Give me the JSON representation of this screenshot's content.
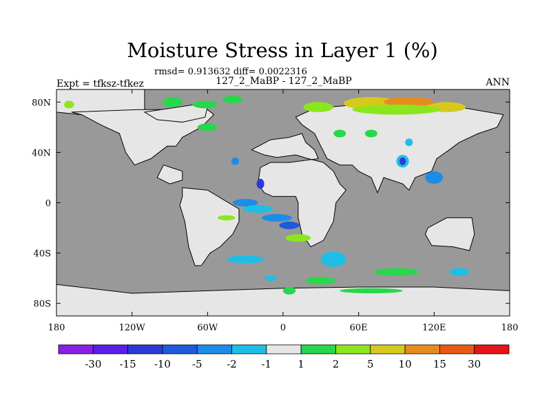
{
  "chart_data": {
    "type": "heatmap",
    "title": "Moisture Stress in Layer 1 (%)",
    "stats_line": "rmsd= 0.913632  diff= 0.0022316",
    "subtitle": "127_2_MaBP - 127_2_MaBP",
    "left_label": "Expt = tfksz-tfkez",
    "right_label": "ANN",
    "x_ticks": [
      "180",
      "120W",
      "60W",
      "0",
      "60E",
      "120E",
      "180"
    ],
    "y_ticks": [
      "80N",
      "40N",
      "0",
      "40S",
      "80S"
    ],
    "xlim": [
      -180,
      180
    ],
    "ylim": [
      -90,
      90
    ],
    "colorbar": {
      "levels": [
        "-30",
        "-15",
        "-10",
        "-5",
        "-2",
        "-1",
        "1",
        "2",
        "5",
        "10",
        "15",
        "30"
      ],
      "colors": [
        "#8a1ee6",
        "#5a1ee6",
        "#2a3ad8",
        "#1e5adc",
        "#1e8ce6",
        "#1ebee6",
        "#e6e6e6",
        "#28d74b",
        "#8ce61e",
        "#d7c81e",
        "#e68c1e",
        "#e65a14",
        "#e61414"
      ]
    },
    "ocean_color": "#999999",
    "land_color": "#e6e6e6",
    "land": [
      [
        [
          -180,
          90
        ],
        [
          -110,
          90
        ],
        [
          -110,
          70
        ],
        [
          -130,
          62
        ],
        [
          -160,
          70
        ],
        [
          -180,
          72
        ]
      ],
      [
        [
          -115,
          74
        ],
        [
          -60,
          74
        ],
        [
          -55,
          70
        ],
        [
          -65,
          60
        ],
        [
          -80,
          52
        ],
        [
          -85,
          45
        ],
        [
          -92,
          45
        ],
        [
          -105,
          35
        ],
        [
          -118,
          30
        ],
        [
          -125,
          40
        ],
        [
          -130,
          55
        ],
        [
          -145,
          62
        ],
        [
          -160,
          70
        ],
        [
          -168,
          72
        ]
      ],
      [
        [
          -110,
          72
        ],
        [
          -70,
          78
        ],
        [
          -60,
          76
        ],
        [
          -62,
          68
        ],
        [
          -80,
          64
        ],
        [
          -100,
          66
        ]
      ],
      [
        [
          -95,
          30
        ],
        [
          -80,
          25
        ],
        [
          -80,
          18
        ],
        [
          -90,
          15
        ],
        [
          -100,
          20
        ]
      ],
      [
        [
          -80,
          12
        ],
        [
          -60,
          10
        ],
        [
          -35,
          -5
        ],
        [
          -35,
          -15
        ],
        [
          -40,
          -25
        ],
        [
          -50,
          -35
        ],
        [
          -58,
          -40
        ],
        [
          -65,
          -50
        ],
        [
          -70,
          -50
        ],
        [
          -75,
          -35
        ],
        [
          -78,
          -15
        ],
        [
          -82,
          -2
        ],
        [
          -80,
          5
        ]
      ],
      [
        [
          -25,
          42
        ],
        [
          -10,
          50
        ],
        [
          5,
          52
        ],
        [
          15,
          55
        ],
        [
          18,
          48
        ],
        [
          25,
          42
        ],
        [
          28,
          35
        ],
        [
          5,
          32
        ],
        [
          -10,
          32
        ],
        [
          -18,
          28
        ],
        [
          -20,
          15
        ],
        [
          -15,
          8
        ],
        [
          -8,
          5
        ],
        [
          10,
          5
        ],
        [
          12,
          0
        ],
        [
          12,
          -12
        ],
        [
          15,
          -25
        ],
        [
          22,
          -35
        ],
        [
          32,
          -30
        ],
        [
          40,
          -15
        ],
        [
          42,
          0
        ],
        [
          50,
          10
        ],
        [
          45,
          15
        ],
        [
          40,
          25
        ],
        [
          32,
          32
        ],
        [
          20,
          35
        ],
        [
          10,
          38
        ],
        [
          -5,
          36
        ],
        [
          -15,
          38
        ]
      ],
      [
        [
          25,
          75
        ],
        [
          60,
          78
        ],
        [
          100,
          80
        ],
        [
          140,
          76
        ],
        [
          175,
          70
        ],
        [
          170,
          60
        ],
        [
          155,
          55
        ],
        [
          140,
          48
        ],
        [
          132,
          42
        ],
        [
          122,
          35
        ],
        [
          118,
          25
        ],
        [
          105,
          20
        ],
        [
          100,
          10
        ],
        [
          95,
          15
        ],
        [
          80,
          20
        ],
        [
          75,
          8
        ],
        [
          70,
          20
        ],
        [
          60,
          25
        ],
        [
          55,
          30
        ],
        [
          45,
          30
        ],
        [
          35,
          35
        ],
        [
          30,
          45
        ],
        [
          25,
          55
        ],
        [
          15,
          62
        ],
        [
          10,
          68
        ]
      ],
      [
        [
          115,
          -20
        ],
        [
          130,
          -12
        ],
        [
          150,
          -12
        ],
        [
          152,
          -25
        ],
        [
          148,
          -38
        ],
        [
          135,
          -35
        ],
        [
          118,
          -34
        ],
        [
          113,
          -25
        ]
      ],
      [
        [
          -180,
          -65
        ],
        [
          -120,
          -72
        ],
        [
          -60,
          -70
        ],
        [
          0,
          -68
        ],
        [
          60,
          -67
        ],
        [
          120,
          -67
        ],
        [
          180,
          -70
        ],
        [
          180,
          -90
        ],
        [
          -180,
          -90
        ]
      ]
    ],
    "patches": [
      {
        "lon": 28,
        "lat": 76,
        "rx": 12,
        "ry": 4,
        "level": 8
      },
      {
        "lon": 70,
        "lat": 79,
        "rx": 22,
        "ry": 5,
        "level": 9
      },
      {
        "lon": 100,
        "lat": 80,
        "rx": 20,
        "ry": 4,
        "level": 10
      },
      {
        "lon": 130,
        "lat": 76,
        "rx": 15,
        "ry": 4,
        "level": 9
      },
      {
        "lon": 90,
        "lat": 74,
        "rx": 35,
        "ry": 4,
        "level": 8
      },
      {
        "lon": -88,
        "lat": 80,
        "rx": 8,
        "ry": 4,
        "level": 7
      },
      {
        "lon": -62,
        "lat": 78,
        "rx": 10,
        "ry": 3,
        "level": 7
      },
      {
        "lon": -60,
        "lat": 60,
        "rx": 8,
        "ry": 3,
        "level": 7
      },
      {
        "lon": -40,
        "lat": 82,
        "rx": 8,
        "ry": 3,
        "level": 7
      },
      {
        "lon": -170,
        "lat": 78,
        "rx": 4,
        "ry": 3,
        "level": 8
      },
      {
        "lon": -38,
        "lat": 33,
        "rx": 3,
        "ry": 3,
        "level": 4
      },
      {
        "lon": -18,
        "lat": 15,
        "rx": 3,
        "ry": 4,
        "level": 2
      },
      {
        "lon": -30,
        "lat": 0,
        "rx": 10,
        "ry": 3,
        "level": 4
      },
      {
        "lon": -20,
        "lat": -5,
        "rx": 12,
        "ry": 3,
        "level": 5
      },
      {
        "lon": -5,
        "lat": -12,
        "rx": 12,
        "ry": 3,
        "level": 4
      },
      {
        "lon": 5,
        "lat": -18,
        "rx": 8,
        "ry": 3,
        "level": 3
      },
      {
        "lon": 12,
        "lat": -28,
        "rx": 10,
        "ry": 3,
        "level": 8
      },
      {
        "lon": -30,
        "lat": -45,
        "rx": 15,
        "ry": 3,
        "level": 5
      },
      {
        "lon": -45,
        "lat": -12,
        "rx": 7,
        "ry": 2,
        "level": 8
      },
      {
        "lon": 95,
        "lat": 33,
        "rx": 5,
        "ry": 5,
        "level": 5
      },
      {
        "lon": 95,
        "lat": 33,
        "rx": 2.5,
        "ry": 3,
        "level": 2
      },
      {
        "lon": 120,
        "lat": 20,
        "rx": 7,
        "ry": 5,
        "level": 4
      },
      {
        "lon": 100,
        "lat": 48,
        "rx": 3,
        "ry": 3,
        "level": 5
      },
      {
        "lon": 45,
        "lat": 55,
        "rx": 5,
        "ry": 3,
        "level": 7
      },
      {
        "lon": 70,
        "lat": 55,
        "rx": 5,
        "ry": 3,
        "level": 7
      },
      {
        "lon": 40,
        "lat": -45,
        "rx": 10,
        "ry": 6,
        "level": 5
      },
      {
        "lon": 90,
        "lat": -55,
        "rx": 18,
        "ry": 3,
        "level": 7
      },
      {
        "lon": 140,
        "lat": -55,
        "rx": 8,
        "ry": 3,
        "level": 5
      },
      {
        "lon": 70,
        "lat": -70,
        "rx": 25,
        "ry": 2,
        "level": 7
      },
      {
        "lon": 5,
        "lat": -70,
        "rx": 5,
        "ry": 3,
        "level": 7
      },
      {
        "lon": 30,
        "lat": -62,
        "rx": 12,
        "ry": 3,
        "level": 7
      },
      {
        "lon": -10,
        "lat": -60,
        "rx": 5,
        "ry": 2,
        "level": 5
      }
    ]
  }
}
